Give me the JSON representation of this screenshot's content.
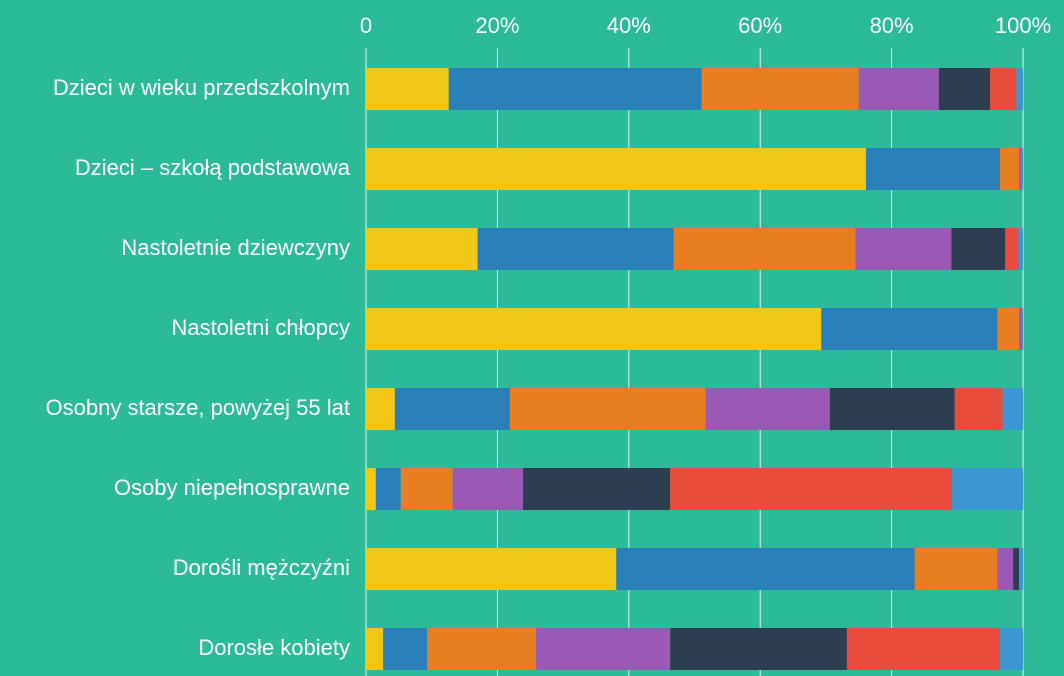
{
  "chart_data": {
    "type": "stacked-bar-horizontal",
    "categories": [
      "Dzieci w wieku przedszkolnym",
      "Dzieci – szkołą podstawowa",
      "Nastoletnie dziewczyny",
      "Nastoletni chłopcy",
      "Osobny starsze, powyżej 55 lat",
      "Osoby niepełnosprawne",
      "Dorośli mężczyźni",
      "Dorosłe kobiety"
    ],
    "series": [
      {
        "color": "#f1c616",
        "values": [
          12.6,
          76.1,
          17.0,
          69.3,
          4.4,
          1.5,
          38.1,
          2.6
        ]
      },
      {
        "color": "#2980b9",
        "values": [
          38.5,
          20.4,
          29.8,
          26.8,
          17.5,
          3.8,
          45.4,
          6.7
        ]
      },
      {
        "color": "#e67e22",
        "values": [
          23.9,
          2.9,
          27.7,
          3.3,
          29.8,
          7.9,
          12.6,
          16.6
        ]
      },
      {
        "color": "#9b59b6",
        "values": [
          12.2,
          0.3,
          14.6,
          0.5,
          18.9,
          10.7,
          2.4,
          20.4
        ]
      },
      {
        "color": "#2c3e50",
        "values": [
          7.8,
          0,
          8.2,
          0,
          19.0,
          22.4,
          0.9,
          26.9
        ]
      },
      {
        "color": "#e74c3c",
        "values": [
          4.0,
          0,
          2.0,
          0,
          7.3,
          42.9,
          0,
          23.3
        ]
      },
      {
        "color": "#3d97d3",
        "values": [
          1.0,
          0.3,
          0.7,
          0.1,
          3.1,
          10.8,
          0.6,
          3.5
        ]
      }
    ],
    "xlim": [
      0,
      100
    ],
    "xticks": [
      0,
      {
        "value": 20,
        "label": "20%"
      },
      {
        "value": 40,
        "label": "40%"
      },
      {
        "value": 60,
        "label": "60%"
      },
      {
        "value": 80,
        "label": "80%"
      },
      {
        "value": 100,
        "label": "100%"
      }
    ],
    "grid": true
  }
}
